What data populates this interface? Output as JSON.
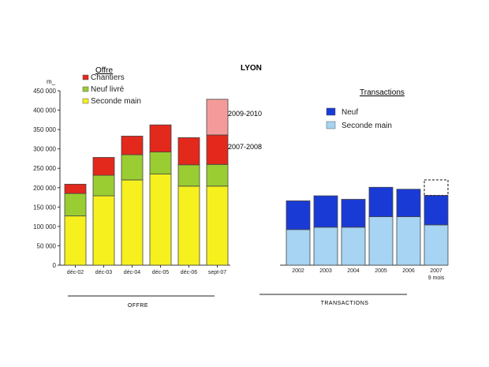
{
  "chart_data": [
    {
      "type": "bar",
      "stacked": true,
      "title": "LYON",
      "legend_title": "Offre",
      "unit_label": "m_",
      "categories": [
        "déc-02",
        "déc-03",
        "déc-04",
        "déc-05",
        "déc-06",
        "sept-07"
      ],
      "series": [
        {
          "name": "Seconde main",
          "color": "#f5f01e",
          "values": [
            127000,
            179000,
            220000,
            235000,
            204000,
            204000
          ]
        },
        {
          "name": "Neuf livré",
          "color": "#9acd32",
          "values": [
            58000,
            53000,
            65000,
            57000,
            55000,
            56000
          ]
        },
        {
          "name": "Chantiers",
          "color": "#e3281c",
          "values": [
            24000,
            46000,
            48000,
            70000,
            70000,
            76000
          ]
        },
        {
          "name": "2009-2010",
          "color": "#f49a9a",
          "values": [
            0,
            0,
            0,
            0,
            0,
            92000
          ],
          "legend": false
        }
      ],
      "annotations": [
        "2009-2010",
        "2007-2008"
      ],
      "ylim": [
        0,
        450000
      ],
      "yticks": [
        "0",
        "50 000",
        "100 000",
        "150 000",
        "200 000",
        "250 000",
        "300 000",
        "350 000",
        "400 000",
        "450 000"
      ],
      "section_label": "OFFRE"
    },
    {
      "type": "bar",
      "stacked": true,
      "title": "Transactions",
      "categories": [
        "2002",
        "2003",
        "2004",
        "2005",
        "2006",
        "2007"
      ],
      "category_sublabels": [
        "",
        "",
        "",
        "",
        "",
        "9 mois"
      ],
      "series": [
        {
          "name": "Seconde main",
          "color": "#a6d4f2",
          "values": [
            92000,
            98000,
            98000,
            125000,
            125000,
            104000
          ]
        },
        {
          "name": "Neuf",
          "color": "#1a3ad6",
          "values": [
            74000,
            81000,
            72000,
            76000,
            71000,
            76000
          ]
        }
      ],
      "projection": {
        "category": "2007",
        "from": 180000,
        "to": 220000
      },
      "ylim": [
        0,
        450000
      ],
      "section_label": "TRANSACTIONS"
    }
  ]
}
